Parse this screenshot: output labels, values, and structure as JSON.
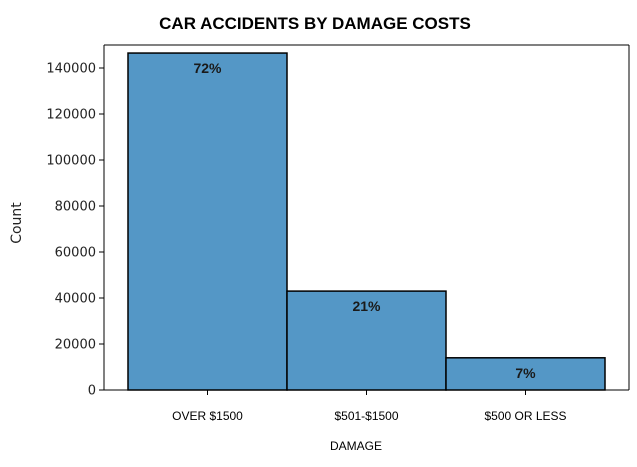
{
  "chart_data": {
    "type": "bar",
    "title": "CAR ACCIDENTS BY DAMAGE COSTS",
    "xlabel": "DAMAGE",
    "ylabel": "Count",
    "categories": [
      "OVER $1500",
      "$501-$1500",
      "$500 OR LESS"
    ],
    "values": [
      146500,
      43000,
      14000
    ],
    "data_labels": [
      "72%",
      "21%",
      "7%"
    ],
    "ylim": [
      0,
      150000
    ],
    "yticks": [
      0,
      20000,
      40000,
      60000,
      80000,
      100000,
      120000,
      140000
    ],
    "ytick_labels": [
      "0",
      "20000",
      "40000",
      "60000",
      "80000",
      "100000",
      "120000",
      "140000"
    ],
    "bar_color": "#5497c6",
    "bar_edge_color": "#000000",
    "grid": false,
    "legend": "none"
  }
}
